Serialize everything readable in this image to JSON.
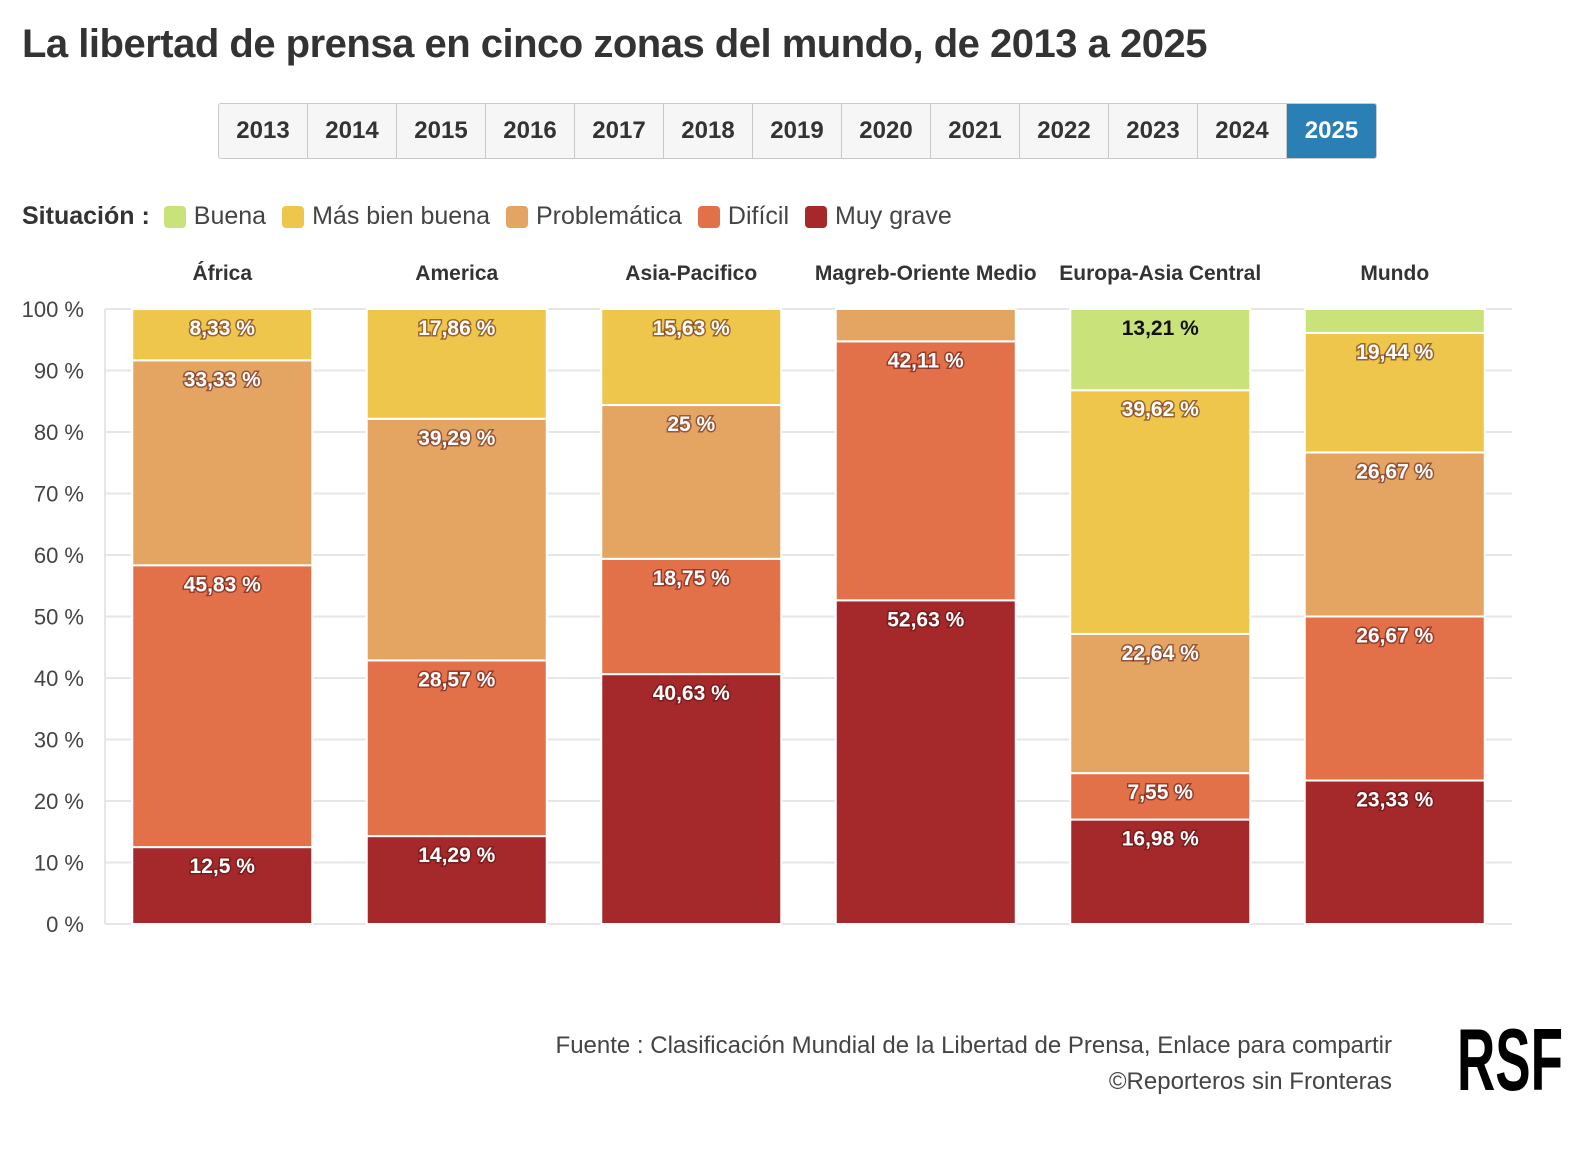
{
  "title": "La libertad de prensa en cinco zonas del mundo, de 2013 a 2025",
  "years": [
    "2013",
    "2014",
    "2015",
    "2016",
    "2017",
    "2018",
    "2019",
    "2020",
    "2021",
    "2022",
    "2023",
    "2024",
    "2025"
  ],
  "selected_year": "2025",
  "legend": {
    "title": "Situación :",
    "items": [
      {
        "label": "Buena",
        "color": "#c9e27a"
      },
      {
        "label": "Más bien buena",
        "color": "#eec64b"
      },
      {
        "label": "Problemática",
        "color": "#e4a462"
      },
      {
        "label": "Difícil",
        "color": "#e27049"
      },
      {
        "label": "Muy grave",
        "color": "#a5282b"
      }
    ]
  },
  "chart_data": {
    "type": "bar",
    "stacked": true,
    "categories": [
      "África",
      "America",
      "Asia-Pacifico",
      "Magreb-Oriente Medio",
      "Europa-Asia Central",
      "Mundo"
    ],
    "series": [
      {
        "name": "Muy grave",
        "color": "#a5282b",
        "values": [
          12.5,
          14.29,
          40.63,
          52.63,
          16.98,
          23.33
        ],
        "labels": [
          "12,5 %",
          "14,29 %",
          "40,63 %",
          "52,63 %",
          "16,98 %",
          "23,33 %"
        ]
      },
      {
        "name": "Difícil",
        "color": "#e27049",
        "values": [
          45.83,
          28.57,
          18.75,
          42.11,
          7.55,
          26.67
        ],
        "labels": [
          "45,83 %",
          "28,57 %",
          "18,75 %",
          "42,11 %",
          "7,55 %",
          "26,67 %"
        ]
      },
      {
        "name": "Problemática",
        "color": "#e4a462",
        "values": [
          33.33,
          39.29,
          25,
          5.26,
          22.64,
          26.67
        ],
        "labels": [
          "33,33 %",
          "39,29 %",
          "25 %",
          "",
          "22,64 %",
          "26,67 %"
        ]
      },
      {
        "name": "Más bien buena",
        "color": "#eec64b",
        "values": [
          8.33,
          17.86,
          15.63,
          0,
          39.62,
          19.44
        ],
        "labels": [
          "8,33 %",
          "17,86 %",
          "15,63 %",
          "",
          "39,62 %",
          "19,44 %"
        ]
      },
      {
        "name": "Buena",
        "color": "#c9e27a",
        "values": [
          0,
          0,
          0,
          0,
          13.21,
          3.89
        ],
        "labels": [
          "",
          "",
          "",
          "",
          "13,21 %",
          ""
        ]
      }
    ],
    "ylim": [
      0,
      100
    ],
    "yticks": [
      "0 %",
      "10 %",
      "20 %",
      "30 %",
      "40 %",
      "50 %",
      "60 %",
      "70 %",
      "80 %",
      "90 %",
      "100 %"
    ],
    "grid": true
  },
  "footer": {
    "line1": "Fuente : Clasificación Mundial de la Libertad de Prensa, Enlace para compartir",
    "line2": "©Reporteros sin Fronteras"
  },
  "logo_text": "RSF"
}
